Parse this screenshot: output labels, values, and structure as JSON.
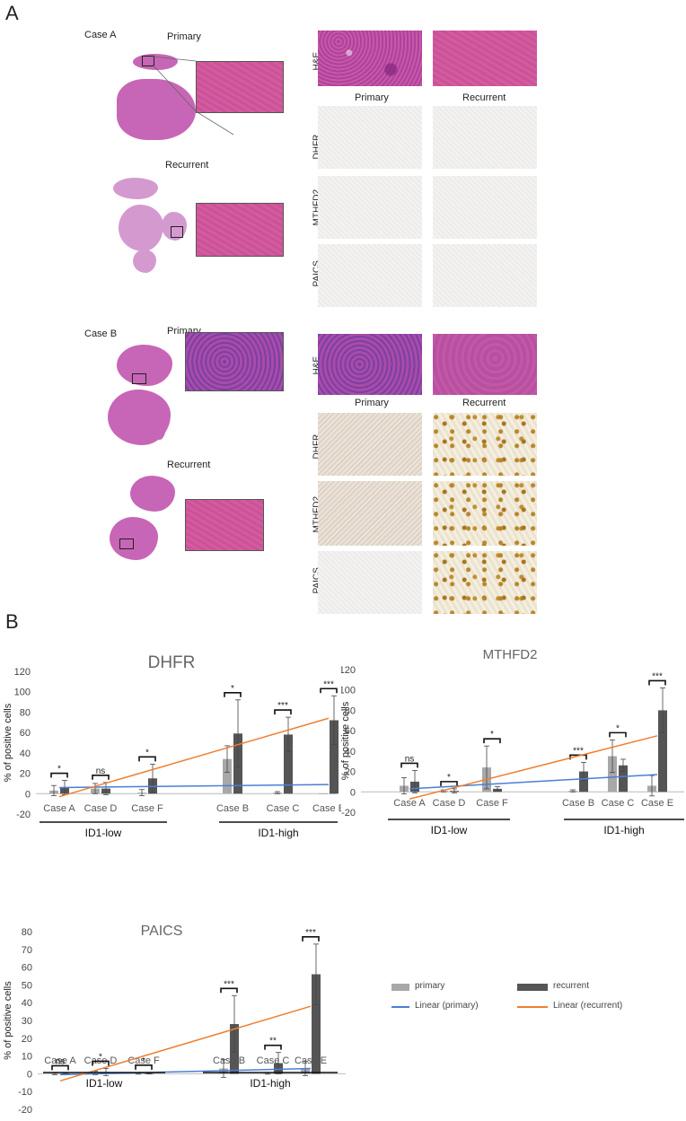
{
  "panel_a": {
    "letter": "A",
    "case_a": {
      "title": "Case A",
      "primary": "Primary",
      "recurrent": "Recurrent"
    },
    "case_b": {
      "title": "Case B",
      "primary": "Primary",
      "recurrent": "Recurrent"
    },
    "col_primary": "Primary",
    "col_recurrent": "Recurrent",
    "stains": [
      "H&E",
      "DHFR",
      "MTHFD2",
      "PAICS"
    ]
  },
  "panel_b": {
    "letter": "B"
  },
  "legend": {
    "primary": "primary",
    "recurrent": "recurrent",
    "linear_primary": "Linear (primary)",
    "linear_recurrent": "Linear (recurrent)",
    "colors": {
      "primary": "#a8a8a8",
      "recurrent": "#555555",
      "linear_primary": "#4a7fd4",
      "linear_recurrent": "#ee7f32"
    }
  },
  "chart_data": [
    {
      "type": "bar",
      "title": "DHFR",
      "ylabel": "% of positive cells",
      "ylim": [
        -20,
        120
      ],
      "yticks": [
        -20,
        0,
        20,
        40,
        60,
        80,
        100,
        120
      ],
      "categories": [
        "Case A",
        "Case D",
        "Case F",
        "Case B",
        "Case C",
        "Case E"
      ],
      "groups": [
        {
          "label": "ID1-low",
          "categories": [
            0,
            1,
            2
          ]
        },
        {
          "label": "ID1-high",
          "categories": [
            3,
            4,
            5
          ]
        }
      ],
      "series": [
        {
          "name": "primary",
          "values": [
            3,
            5,
            1,
            34,
            1,
            0
          ],
          "errors": [
            5,
            5,
            3,
            13,
            1,
            0
          ]
        },
        {
          "name": "recurrent",
          "values": [
            6,
            5,
            15,
            59,
            58,
            72
          ],
          "errors": [
            7,
            6,
            14,
            33,
            17,
            24
          ]
        }
      ],
      "significance": [
        "*",
        "ns",
        "*",
        "*",
        "***",
        "***"
      ],
      "trend_primary": [
        6,
        9
      ],
      "trend_recurrent": [
        -3,
        74
      ]
    },
    {
      "type": "bar",
      "title": "MTHFD2",
      "ylabel": "% of positive cells",
      "ylim": [
        -20,
        120
      ],
      "yticks": [
        -20,
        0,
        20,
        40,
        60,
        80,
        100,
        120
      ],
      "categories": [
        "Case A",
        "Case D",
        "Case F",
        "Case B",
        "Case C",
        "Case E"
      ],
      "groups": [
        {
          "label": "ID1-low",
          "categories": [
            0,
            1,
            2
          ]
        },
        {
          "label": "ID1-high",
          "categories": [
            3,
            4,
            5
          ]
        }
      ],
      "series": [
        {
          "name": "primary",
          "values": [
            6,
            1,
            24,
            1,
            35,
            6
          ],
          "errors": [
            8,
            1,
            21,
            1,
            16,
            10
          ]
        },
        {
          "name": "recurrent",
          "values": [
            10,
            1,
            3,
            20,
            26,
            80
          ],
          "errors": [
            11,
            2,
            2,
            9,
            6,
            22
          ]
        }
      ],
      "significance": [
        "ns",
        "*",
        "*",
        "***",
        "*",
        "***"
      ],
      "trend_primary": [
        3,
        17
      ],
      "trend_recurrent": [
        -7,
        55
      ]
    },
    {
      "type": "bar",
      "title": "PAICS",
      "ylabel": "% of positive cells",
      "ylim": [
        -20,
        80
      ],
      "yticks": [
        -20,
        -10,
        0,
        10,
        20,
        30,
        40,
        50,
        60,
        70,
        80
      ],
      "categories": [
        "Case A",
        "Case D",
        "Case F",
        "Case B",
        "Case C",
        "Case E"
      ],
      "groups": [
        {
          "label": "ID1-low",
          "categories": [
            0,
            1,
            2
          ]
        },
        {
          "label": "ID1-high",
          "categories": [
            3,
            4,
            5
          ]
        }
      ],
      "series": [
        {
          "name": "primary",
          "values": [
            0,
            0.5,
            0.3,
            3,
            0.3,
            3
          ],
          "errors": [
            0.5,
            1,
            0.5,
            5,
            0.5,
            4
          ]
        },
        {
          "name": "recurrent",
          "values": [
            0.2,
            1,
            0.2,
            28,
            6,
            56
          ],
          "errors": [
            0.3,
            2,
            0.3,
            16,
            6,
            17
          ]
        }
      ],
      "significance": [
        "ns",
        "*",
        "*",
        "***",
        "**",
        "***"
      ],
      "trend_primary": [
        -0.5,
        3
      ],
      "trend_recurrent": [
        -4,
        38
      ]
    }
  ]
}
